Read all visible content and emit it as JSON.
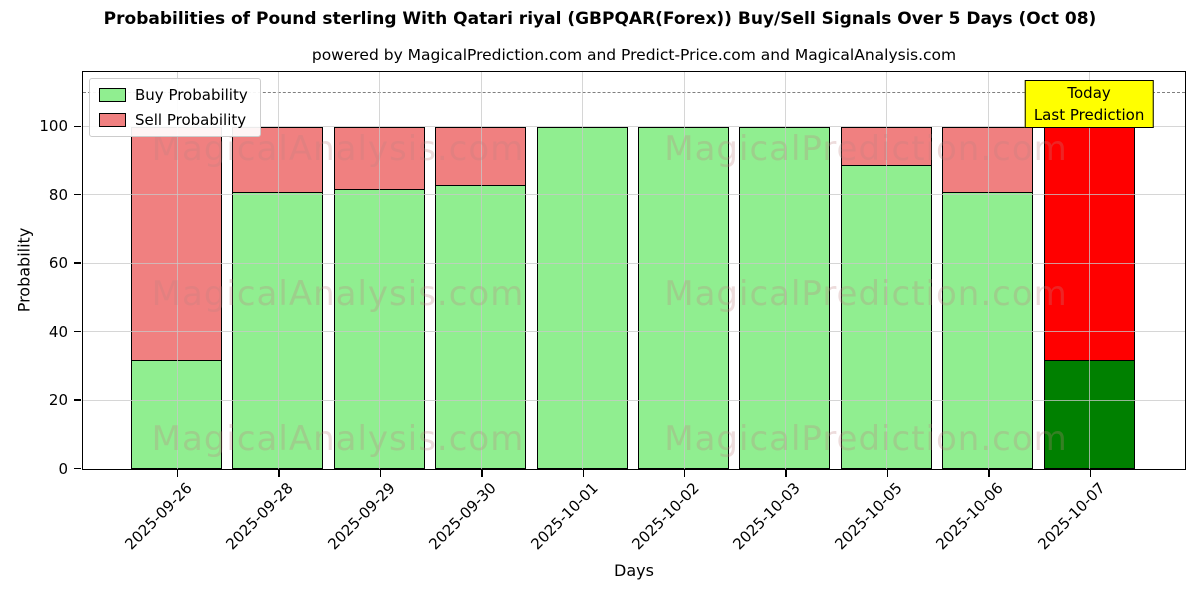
{
  "title": "Probabilities of Pound sterling With Qatari riyal (GBPQAR(Forex)) Buy/Sell Signals Over 5 Days (Oct 08)",
  "subtitle": "powered by MagicalPrediction.com and Predict-Price.com and MagicalAnalysis.com",
  "chart_data": {
    "type": "bar",
    "stacked": true,
    "title": "Probabilities of Pound sterling With Qatari riyal (GBPQAR(Forex)) Buy/Sell Signals Over 5 Days (Oct 08)",
    "subtitle": "powered by MagicalPrediction.com and Predict-Price.com and MagicalAnalysis.com",
    "xlabel": "Days",
    "ylabel": "Probability",
    "categories": [
      "2025-09-26",
      "2025-09-28",
      "2025-09-29",
      "2025-09-30",
      "2025-10-01",
      "2025-10-02",
      "2025-10-03",
      "2025-10-05",
      "2025-10-06",
      "2025-10-07"
    ],
    "series": [
      {
        "name": "Buy Probability",
        "color": "#90EE90",
        "today_color": "#008000",
        "values": [
          32,
          81,
          82,
          83,
          100,
          100,
          100,
          89,
          81,
          32
        ]
      },
      {
        "name": "Sell Probability",
        "color": "#F08080",
        "today_color": "#FF0000",
        "values": [
          68,
          19,
          18,
          17,
          0,
          0,
          0,
          11,
          19,
          68
        ]
      }
    ],
    "today_index": 9,
    "ylim": [
      0,
      115.7
    ],
    "yticks": [
      0,
      20,
      40,
      60,
      80,
      100
    ],
    "grid": true,
    "legend_position": "upper left",
    "dashed_line_y": 110,
    "annotation": {
      "lines": [
        "Today",
        "Last Prediction"
      ],
      "bg": "#FFFF00",
      "border": "#000000"
    },
    "watermarks": [
      "MagicalAnalysis.com",
      "MagicalPrediction.com"
    ]
  },
  "colors": {
    "buy": "#90EE90",
    "sell": "#F08080",
    "today_buy": "#008000",
    "today_sell": "#FF0000",
    "annotation_bg": "#FFFF00",
    "dashed_line": "#7f7f7f",
    "grid": "#c8c8c8"
  }
}
